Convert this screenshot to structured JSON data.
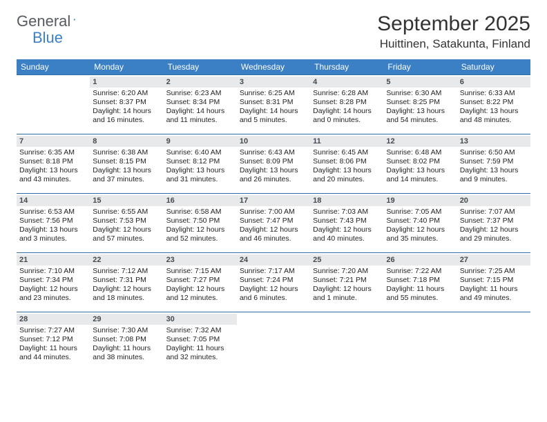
{
  "brand": {
    "word1": "General",
    "word2": "Blue"
  },
  "title": "September 2025",
  "location": "Huittinen, Satakunta, Finland",
  "colors": {
    "header_bg": "#3b7fc4",
    "header_text": "#ffffff",
    "daynum_bg": "#e7e9eb",
    "daynum_text": "#454a50",
    "rule": "#2f6aa8",
    "page_bg": "#ffffff",
    "body_text": "#333333"
  },
  "weekdays": [
    "Sunday",
    "Monday",
    "Tuesday",
    "Wednesday",
    "Thursday",
    "Friday",
    "Saturday"
  ],
  "weeks": [
    [
      null,
      {
        "n": "1",
        "sr": "6:20 AM",
        "ss": "8:37 PM",
        "dl": "14 hours and 16 minutes."
      },
      {
        "n": "2",
        "sr": "6:23 AM",
        "ss": "8:34 PM",
        "dl": "14 hours and 11 minutes."
      },
      {
        "n": "3",
        "sr": "6:25 AM",
        "ss": "8:31 PM",
        "dl": "14 hours and 5 minutes."
      },
      {
        "n": "4",
        "sr": "6:28 AM",
        "ss": "8:28 PM",
        "dl": "14 hours and 0 minutes."
      },
      {
        "n": "5",
        "sr": "6:30 AM",
        "ss": "8:25 PM",
        "dl": "13 hours and 54 minutes."
      },
      {
        "n": "6",
        "sr": "6:33 AM",
        "ss": "8:22 PM",
        "dl": "13 hours and 48 minutes."
      }
    ],
    [
      {
        "n": "7",
        "sr": "6:35 AM",
        "ss": "8:18 PM",
        "dl": "13 hours and 43 minutes."
      },
      {
        "n": "8",
        "sr": "6:38 AM",
        "ss": "8:15 PM",
        "dl": "13 hours and 37 minutes."
      },
      {
        "n": "9",
        "sr": "6:40 AM",
        "ss": "8:12 PM",
        "dl": "13 hours and 31 minutes."
      },
      {
        "n": "10",
        "sr": "6:43 AM",
        "ss": "8:09 PM",
        "dl": "13 hours and 26 minutes."
      },
      {
        "n": "11",
        "sr": "6:45 AM",
        "ss": "8:06 PM",
        "dl": "13 hours and 20 minutes."
      },
      {
        "n": "12",
        "sr": "6:48 AM",
        "ss": "8:02 PM",
        "dl": "13 hours and 14 minutes."
      },
      {
        "n": "13",
        "sr": "6:50 AM",
        "ss": "7:59 PM",
        "dl": "13 hours and 9 minutes."
      }
    ],
    [
      {
        "n": "14",
        "sr": "6:53 AM",
        "ss": "7:56 PM",
        "dl": "13 hours and 3 minutes."
      },
      {
        "n": "15",
        "sr": "6:55 AM",
        "ss": "7:53 PM",
        "dl": "12 hours and 57 minutes."
      },
      {
        "n": "16",
        "sr": "6:58 AM",
        "ss": "7:50 PM",
        "dl": "12 hours and 52 minutes."
      },
      {
        "n": "17",
        "sr": "7:00 AM",
        "ss": "7:47 PM",
        "dl": "12 hours and 46 minutes."
      },
      {
        "n": "18",
        "sr": "7:03 AM",
        "ss": "7:43 PM",
        "dl": "12 hours and 40 minutes."
      },
      {
        "n": "19",
        "sr": "7:05 AM",
        "ss": "7:40 PM",
        "dl": "12 hours and 35 minutes."
      },
      {
        "n": "20",
        "sr": "7:07 AM",
        "ss": "7:37 PM",
        "dl": "12 hours and 29 minutes."
      }
    ],
    [
      {
        "n": "21",
        "sr": "7:10 AM",
        "ss": "7:34 PM",
        "dl": "12 hours and 23 minutes."
      },
      {
        "n": "22",
        "sr": "7:12 AM",
        "ss": "7:31 PM",
        "dl": "12 hours and 18 minutes."
      },
      {
        "n": "23",
        "sr": "7:15 AM",
        "ss": "7:27 PM",
        "dl": "12 hours and 12 minutes."
      },
      {
        "n": "24",
        "sr": "7:17 AM",
        "ss": "7:24 PM",
        "dl": "12 hours and 6 minutes."
      },
      {
        "n": "25",
        "sr": "7:20 AM",
        "ss": "7:21 PM",
        "dl": "12 hours and 1 minute."
      },
      {
        "n": "26",
        "sr": "7:22 AM",
        "ss": "7:18 PM",
        "dl": "11 hours and 55 minutes."
      },
      {
        "n": "27",
        "sr": "7:25 AM",
        "ss": "7:15 PM",
        "dl": "11 hours and 49 minutes."
      }
    ],
    [
      {
        "n": "28",
        "sr": "7:27 AM",
        "ss": "7:12 PM",
        "dl": "11 hours and 44 minutes."
      },
      {
        "n": "29",
        "sr": "7:30 AM",
        "ss": "7:08 PM",
        "dl": "11 hours and 38 minutes."
      },
      {
        "n": "30",
        "sr": "7:32 AM",
        "ss": "7:05 PM",
        "dl": "11 hours and 32 minutes."
      },
      null,
      null,
      null,
      null
    ]
  ],
  "labels": {
    "sunrise": "Sunrise: ",
    "sunset": "Sunset: ",
    "daylight": "Daylight: "
  }
}
